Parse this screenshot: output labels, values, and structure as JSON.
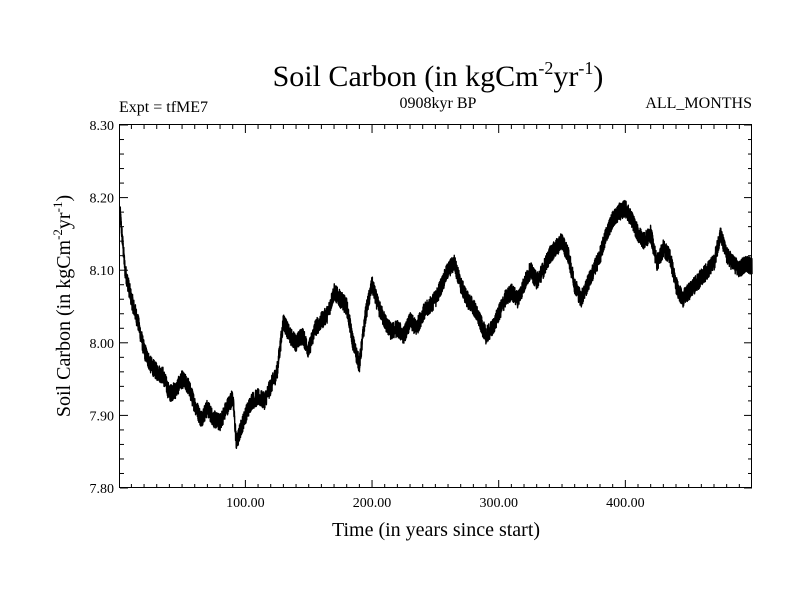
{
  "chart_data": {
    "type": "line",
    "title": {
      "main": "Soil Carbon (in kgCm",
      "sup1": "-2",
      "mid": "yr",
      "sup2": "-1",
      "end": ")"
    },
    "subtitle_left": "Expt = tfME7",
    "subtitle_center": "0908kyr BP",
    "subtitle_right": "ALL_MONTHS",
    "xlabel": "Time (in years since start)",
    "ylabel": {
      "main": "Soil Carbon (in kgCm",
      "sup1": "-2",
      "mid": "yr",
      "sup2": "-1",
      "end": ")"
    },
    "xlim": [
      1,
      500
    ],
    "ylim": [
      7.8,
      8.3
    ],
    "xticks": [
      100,
      200,
      300,
      400
    ],
    "xtick_labels": [
      "100.00",
      "200.00",
      "300.00",
      "400.00"
    ],
    "yticks": [
      7.8,
      7.9,
      8.0,
      8.1,
      8.2,
      8.3
    ],
    "ytick_labels": [
      "7.80",
      "7.90",
      "8.00",
      "8.10",
      "8.20",
      "8.30"
    ],
    "grid": false,
    "series": [
      {
        "name": "Soil Carbon",
        "color": "#000000",
        "noise_amplitude": 0.012,
        "samples_per_year": 12,
        "anchors": [
          [
            1,
            8.18
          ],
          [
            5,
            8.1
          ],
          [
            10,
            8.06
          ],
          [
            15,
            8.03
          ],
          [
            20,
            7.99
          ],
          [
            25,
            7.97
          ],
          [
            30,
            7.96
          ],
          [
            35,
            7.955
          ],
          [
            40,
            7.93
          ],
          [
            45,
            7.935
          ],
          [
            50,
            7.95
          ],
          [
            55,
            7.94
          ],
          [
            60,
            7.915
          ],
          [
            65,
            7.895
          ],
          [
            70,
            7.91
          ],
          [
            75,
            7.895
          ],
          [
            80,
            7.89
          ],
          [
            85,
            7.91
          ],
          [
            90,
            7.925
          ],
          [
            93,
            7.86
          ],
          [
            96,
            7.88
          ],
          [
            100,
            7.9
          ],
          [
            105,
            7.92
          ],
          [
            110,
            7.925
          ],
          [
            115,
            7.92
          ],
          [
            120,
            7.94
          ],
          [
            125,
            7.96
          ],
          [
            130,
            8.03
          ],
          [
            135,
            8.01
          ],
          [
            140,
            8.0
          ],
          [
            145,
            8.01
          ],
          [
            150,
            7.99
          ],
          [
            155,
            8.02
          ],
          [
            160,
            8.03
          ],
          [
            165,
            8.04
          ],
          [
            170,
            8.07
          ],
          [
            175,
            8.06
          ],
          [
            180,
            8.05
          ],
          [
            185,
            8.0
          ],
          [
            190,
            7.97
          ],
          [
            195,
            8.04
          ],
          [
            200,
            8.08
          ],
          [
            205,
            8.05
          ],
          [
            210,
            8.03
          ],
          [
            215,
            8.015
          ],
          [
            220,
            8.02
          ],
          [
            225,
            8.01
          ],
          [
            230,
            8.03
          ],
          [
            235,
            8.02
          ],
          [
            240,
            8.04
          ],
          [
            245,
            8.05
          ],
          [
            250,
            8.06
          ],
          [
            255,
            8.08
          ],
          [
            260,
            8.1
          ],
          [
            265,
            8.11
          ],
          [
            270,
            8.08
          ],
          [
            275,
            8.06
          ],
          [
            280,
            8.05
          ],
          [
            285,
            8.03
          ],
          [
            290,
            8.01
          ],
          [
            295,
            8.02
          ],
          [
            300,
            8.04
          ],
          [
            305,
            8.06
          ],
          [
            310,
            8.07
          ],
          [
            315,
            8.06
          ],
          [
            320,
            8.08
          ],
          [
            325,
            8.1
          ],
          [
            330,
            8.085
          ],
          [
            335,
            8.1
          ],
          [
            340,
            8.12
          ],
          [
            345,
            8.13
          ],
          [
            350,
            8.14
          ],
          [
            355,
            8.12
          ],
          [
            360,
            8.08
          ],
          [
            365,
            8.06
          ],
          [
            370,
            8.08
          ],
          [
            375,
            8.1
          ],
          [
            380,
            8.12
          ],
          [
            385,
            8.15
          ],
          [
            390,
            8.17
          ],
          [
            395,
            8.18
          ],
          [
            400,
            8.185
          ],
          [
            405,
            8.17
          ],
          [
            410,
            8.15
          ],
          [
            415,
            8.14
          ],
          [
            420,
            8.15
          ],
          [
            425,
            8.11
          ],
          [
            430,
            8.13
          ],
          [
            435,
            8.12
          ],
          [
            440,
            8.08
          ],
          [
            445,
            8.06
          ],
          [
            450,
            8.07
          ],
          [
            455,
            8.08
          ],
          [
            460,
            8.09
          ],
          [
            465,
            8.1
          ],
          [
            470,
            8.11
          ],
          [
            475,
            8.15
          ],
          [
            480,
            8.12
          ],
          [
            485,
            8.11
          ],
          [
            490,
            8.1
          ],
          [
            495,
            8.11
          ],
          [
            500,
            8.105
          ]
        ]
      }
    ]
  }
}
